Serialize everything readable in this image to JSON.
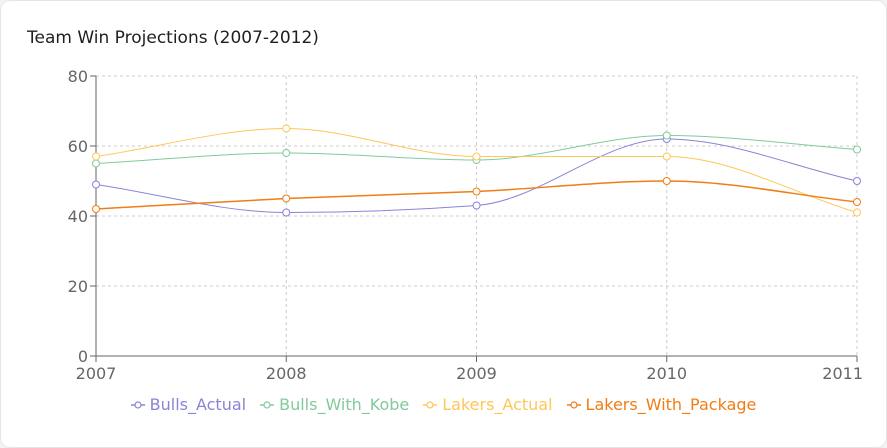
{
  "chart_data": {
    "type": "line",
    "title": "Team Win Projections (2007-2012)",
    "x": [
      "2007",
      "2008",
      "2009",
      "2010",
      "2011"
    ],
    "y_ticks": [
      0,
      20,
      40,
      60,
      80
    ],
    "ylim": [
      0,
      80
    ],
    "grid": true,
    "legend_position": "bottom",
    "series": [
      {
        "name": "Bulls_Actual",
        "color": "#8884d8",
        "values": [
          49,
          41,
          43,
          62,
          50
        ]
      },
      {
        "name": "Bulls_With_Kobe",
        "color": "#82ca9d",
        "values": [
          55,
          58,
          56,
          63,
          59
        ]
      },
      {
        "name": "Lakers_Actual",
        "color": "#ffc658",
        "values": [
          57,
          65,
          57,
          57,
          41
        ]
      },
      {
        "name": "Lakers_With_Package",
        "color": "#f07d16",
        "values": [
          42,
          45,
          47,
          50,
          44
        ]
      }
    ]
  }
}
